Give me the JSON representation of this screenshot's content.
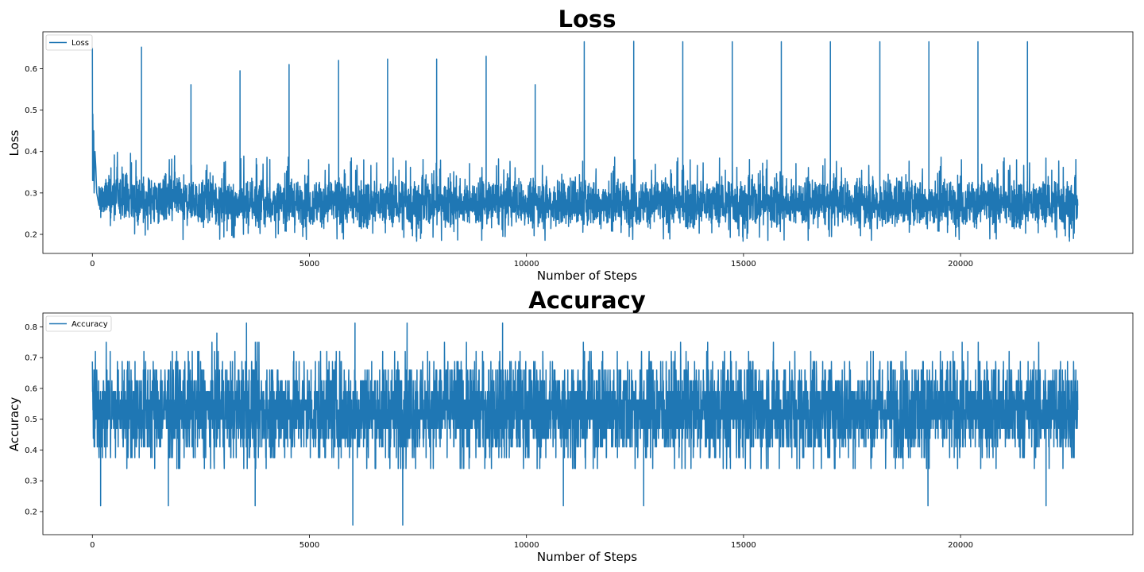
{
  "chart_data": [
    {
      "type": "line",
      "title": "Loss",
      "xlabel": "Number of Steps",
      "ylabel": "Loss",
      "xlim": [
        -1140,
        23970
      ],
      "ylim": [
        0.154,
        0.689
      ],
      "xticks": [
        0,
        5000,
        10000,
        15000,
        20000
      ],
      "yticks": [
        0.2,
        0.3,
        0.4,
        0.5,
        0.6
      ],
      "grid": false,
      "legend": "top-left",
      "color": "#1f77b4",
      "n_steps": 22700,
      "series": [
        {
          "name": "Loss",
          "noise": {
            "center": 0.275,
            "band": [
              0.215,
              0.335
            ],
            "min": 0.178,
            "max": 0.43
          },
          "early": [
            [
              0,
              0.65
            ],
            [
              5,
              0.33
            ],
            [
              10,
              0.49
            ],
            [
              20,
              0.33
            ],
            [
              30,
              0.45
            ],
            [
              40,
              0.3
            ],
            [
              60,
              0.4
            ],
            [
              80,
              0.36
            ],
            [
              100,
              0.3
            ],
            [
              150,
              0.27
            ]
          ],
          "spikes": [
            [
              1130,
              0.652
            ],
            [
              2270,
              0.561
            ],
            [
              3400,
              0.595
            ],
            [
              4530,
              0.61
            ],
            [
              5670,
              0.62
            ],
            [
              6800,
              0.623
            ],
            [
              7930,
              0.623
            ],
            [
              9070,
              0.63
            ],
            [
              10200,
              0.561
            ],
            [
              11330,
              0.665
            ],
            [
              12470,
              0.666
            ],
            [
              13600,
              0.665
            ],
            [
              14740,
              0.665
            ],
            [
              15870,
              0.665
            ],
            [
              17000,
              0.665
            ],
            [
              18140,
              0.665
            ],
            [
              19270,
              0.665
            ],
            [
              20400,
              0.665
            ],
            [
              21540,
              0.665
            ]
          ]
        }
      ]
    },
    {
      "type": "line",
      "title": "Accuracy",
      "xlabel": "Number of Steps",
      "ylabel": "Accuracy",
      "xlim": [
        -1140,
        23970
      ],
      "ylim": [
        0.125,
        0.845
      ],
      "xticks": [
        0,
        5000,
        10000,
        15000,
        20000
      ],
      "yticks": [
        0.2,
        0.3,
        0.4,
        0.5,
        0.6,
        0.7,
        0.8
      ],
      "grid": false,
      "legend": "top-left",
      "color": "#1f77b4",
      "n_steps": 22700,
      "series": [
        {
          "name": "Accuracy",
          "noise": {
            "levels": [
              0.25,
              0.28,
              0.3125,
              0.34,
              0.375,
              0.41,
              0.4375,
              0.47,
              0.5,
              0.53,
              0.5625,
              0.59,
              0.625,
              0.66,
              0.6875,
              0.72,
              0.75,
              0.78,
              0.8125
            ],
            "min": 0.156,
            "max": 0.8125
          },
          "extremes": [
            [
              6000,
              0.156
            ],
            [
              7150,
              0.156
            ],
            [
              3550,
              0.8125
            ],
            [
              6050,
              0.8125
            ],
            [
              7250,
              0.8125
            ],
            [
              9450,
              0.8125
            ],
            [
              190,
              0.219
            ],
            [
              1750,
              0.219
            ],
            [
              3750,
              0.219
            ],
            [
              10850,
              0.219
            ],
            [
              12700,
              0.219
            ],
            [
              19250,
              0.219
            ],
            [
              21970,
              0.219
            ]
          ]
        }
      ]
    }
  ]
}
